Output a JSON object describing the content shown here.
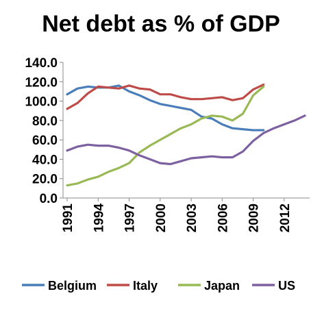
{
  "chart_data": {
    "type": "line",
    "title": "Net debt as % of GDP",
    "xlabel": "",
    "ylabel": "",
    "x": [
      1991,
      1992,
      1993,
      1994,
      1995,
      1996,
      1997,
      1998,
      1999,
      2000,
      2001,
      2002,
      2003,
      2004,
      2005,
      2006,
      2007,
      2008,
      2009,
      2010,
      2011,
      2012,
      2013,
      2014
    ],
    "xticks": [
      "1991",
      "1994",
      "1997",
      "2000",
      "2003",
      "2006",
      "2009",
      "2012"
    ],
    "yticks": [
      "0.0",
      "20.0",
      "40.0",
      "60.0",
      "80.0",
      "100.0",
      "120.0",
      "140.0"
    ],
    "ylim": [
      0,
      140
    ],
    "grid": false,
    "legend_position": "bottom",
    "series": [
      {
        "name": "Belgium",
        "color": "#4a7ebb",
        "values": [
          107,
          113,
          115,
          114,
          114,
          116,
          110,
          106,
          101,
          97,
          95,
          93,
          91,
          84,
          82,
          76,
          72,
          71,
          70,
          70,
          null,
          null,
          null,
          null
        ]
      },
      {
        "name": "Italy",
        "color": "#be4b48",
        "values": [
          92,
          98,
          108,
          115,
          114,
          113,
          116,
          113,
          112,
          107,
          107,
          104,
          102,
          102,
          103,
          104,
          101,
          103,
          112,
          117,
          null,
          null,
          null,
          null
        ]
      },
      {
        "name": "Japan",
        "color": "#98b954",
        "values": [
          13,
          15,
          19,
          22,
          27,
          31,
          36,
          47,
          54,
          60,
          66,
          72,
          76,
          82,
          85,
          84,
          80,
          87,
          106,
          115,
          null,
          null,
          null,
          null
        ]
      },
      {
        "name": "US",
        "color": "#7d60a0",
        "values": [
          49,
          53,
          55,
          54,
          54,
          52,
          49,
          44,
          40,
          36,
          35,
          38,
          41,
          42,
          43,
          42,
          42,
          48,
          59,
          67,
          72,
          76,
          80,
          85
        ]
      }
    ]
  }
}
